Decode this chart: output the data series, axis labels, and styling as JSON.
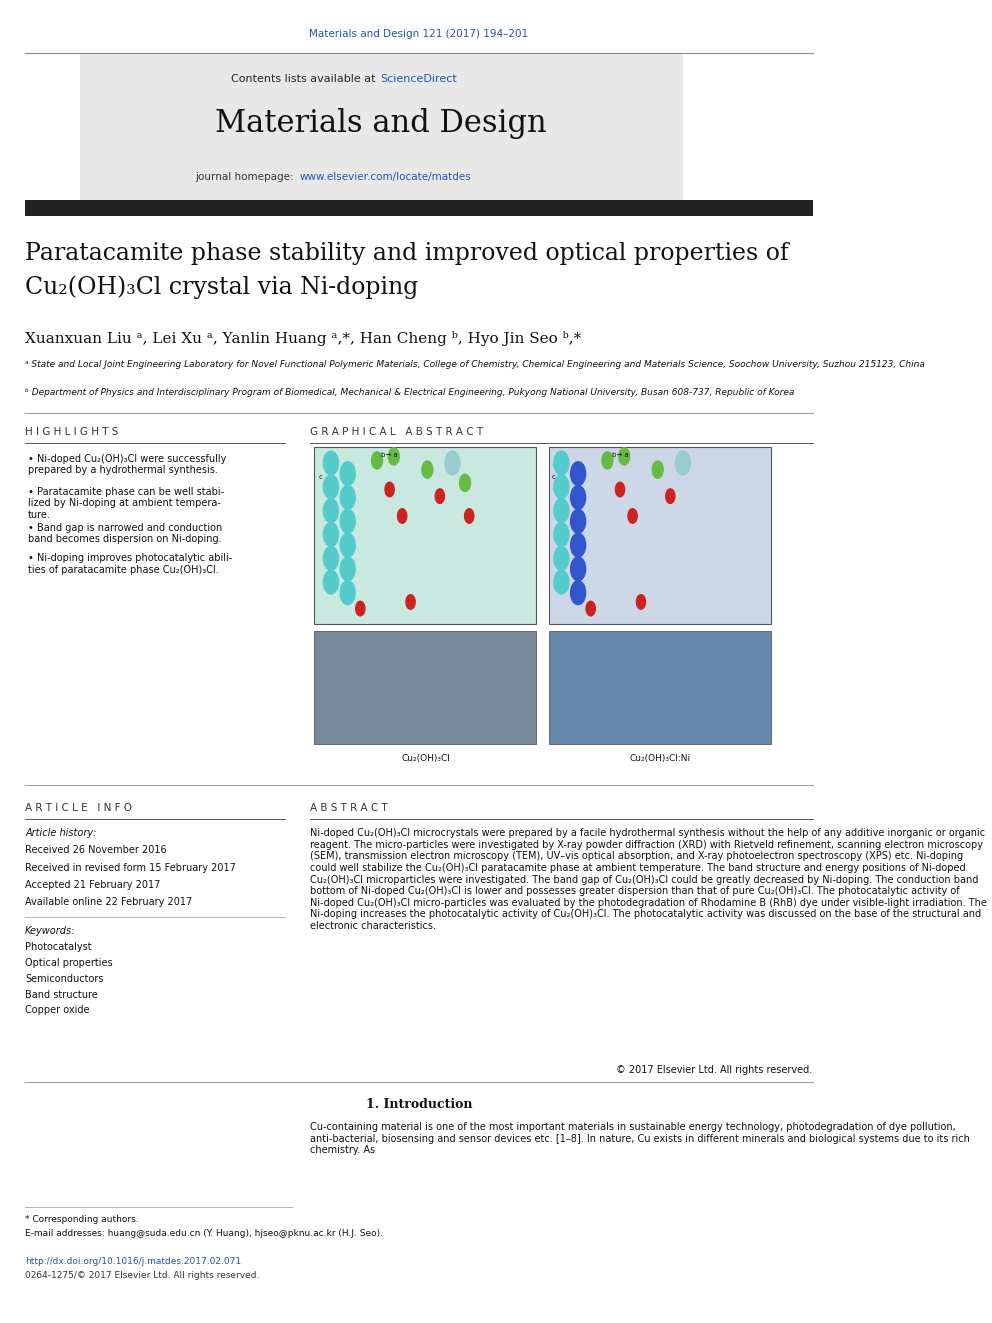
{
  "page_bg": "#ffffff",
  "header_citation": "Materials and Design 121 (2017) 194–201",
  "header_citation_color": "#2255aa",
  "header_citation_fontsize": 7.5,
  "journal_header_bg": "#e8e8e8",
  "journal_contents_text": "Contents lists available at ",
  "science_direct_text": "ScienceDirect",
  "science_direct_color": "#2255aa",
  "journal_name": "Materials and Design",
  "journal_name_fontsize": 22,
  "journal_homepage_text": "journal homepage: ",
  "journal_url": "www.elsevier.com/locate/matdes",
  "journal_url_color": "#2255aa",
  "top_bar_color": "#222222",
  "title_line1": "Paratacamite phase stability and improved optical properties of",
  "title_line2": "Cu₂(OH)₃Cl crystal via Ni-doping",
  "title_fontsize": 17,
  "authors": "Xuanxuan Liu ᵃ, Lei Xu ᵃ, Yanlin Huang ᵃ,*, Han Cheng ᵇ, Hyo Jin Seo ᵇ,*",
  "authors_fontsize": 11,
  "affil_a": "ᵃ State and Local Joint Engineering Laboratory for Novel Functional Polymeric Materials, College of Chemistry, Chemical Engineering and Materials Science, Soochow University, Suzhou 215123, China",
  "affil_b": "ᵇ Department of Physics and Interdisciplinary Program of Biomedical, Mechanical & Electrical Engineering, Pukyong National University, Busan 608-737, Republic of Korea",
  "affil_fontsize": 6.5,
  "highlights_title": "H I G H L I G H T S",
  "highlights_title_fontsize": 7.5,
  "graphical_abstract_title": "G R A P H I C A L   A B S T R A C T",
  "graphical_abstract_title_fontsize": 7.5,
  "highlights": [
    "Ni-doped Cu₂(OH)₃Cl were successfully\nprepared by a hydrothermal synthesis.",
    "Paratacamite phase can be well stabi-\nlized by Ni-doping at ambient tempera-\nture.",
    "Band gap is narrowed and conduction\nband becomes dispersion on Ni-doping.",
    "Ni-doping improves photocatalytic abili-\nties of paratacamite phase Cu₂(OH)₃Cl."
  ],
  "highlights_fontsize": 7,
  "article_info_title": "A R T I C L E   I N F O",
  "article_info_title_fontsize": 7.5,
  "abstract_title": "A B S T R A C T",
  "abstract_title_fontsize": 7.5,
  "article_history_label": "Article history:",
  "received": "Received 26 November 2016",
  "revised": "Received in revised form 15 February 2017",
  "accepted": "Accepted 21 February 2017",
  "available": "Available online 22 February 2017",
  "keywords_label": "Keywords:",
  "keywords": [
    "Photocatalyst",
    "Optical properties",
    "Semiconductors",
    "Band structure",
    "Copper oxide"
  ],
  "article_info_fontsize": 7,
  "abstract_text": "Ni-doped Cu₂(OH)₃Cl microcrystals were prepared by a facile hydrothermal synthesis without the help of any additive inorganic or organic reagent. The micro-particles were investigated by X-ray powder diffraction (XRD) with Rietveld refinement, scanning electron microscopy (SEM), transmission electron microscopy (TEM), UV–vis optical absorption, and X-ray photoelectron spectroscopy (XPS) etc. Ni-doping could well stabilize the Cu₂(OH)₃Cl paratacamite phase at ambient temperature. The band structure and energy positions of Ni-doped Cu₂(OH)₃Cl microparticles were investigated. The band gap of Cu₂(OH)₃Cl could be greatly decreased by Ni-doping. The conduction band bottom of Ni-doped Cu₂(OH)₃Cl is lower and possesses greater dispersion than that of pure Cu₂(OH)₃Cl. The photocatalytic activity of Ni-doped Cu₂(OH)₃Cl micro-particles was evaluated by the photodegradation of Rhodamine B (RhB) dye under visible-light irradiation. The Ni-doping increases the photocatalytic activity of Cu₂(OH)₃Cl. The photocatalytic activity was discussed on the base of the structural and electronic characteristics.",
  "abstract_fontsize": 7,
  "copyright_text": "© 2017 Elsevier Ltd. All rights reserved.",
  "intro_title": "1. Introduction",
  "intro_title_fontsize": 9,
  "intro_text": "Cu-containing material is one of the most important materials in sustainable energy technology, photodegradation of dye pollution, anti-bacterial, biosensing and sensor devices etc. [1–8]. In nature, Cu exists in different minerals and biological systems due to its rich chemistry. As",
  "intro_fontsize": 7,
  "corresponding_authors_note": "* Corresponding authors.",
  "email_note": "E-mail addresses: huang@suda.edu.cn (Y. Huang), hjseo@pknu.ac.kr (H.J. Seo).",
  "doi_text": "http://dx.doi.org/10.1016/j.matdes.2017.02.071",
  "issn_text": "0264-1275/© 2017 Elsevier Ltd. All rights reserved.",
  "footer_fontsize": 6.5,
  "section_line_color": "#999999",
  "doi_color": "#2255aa"
}
